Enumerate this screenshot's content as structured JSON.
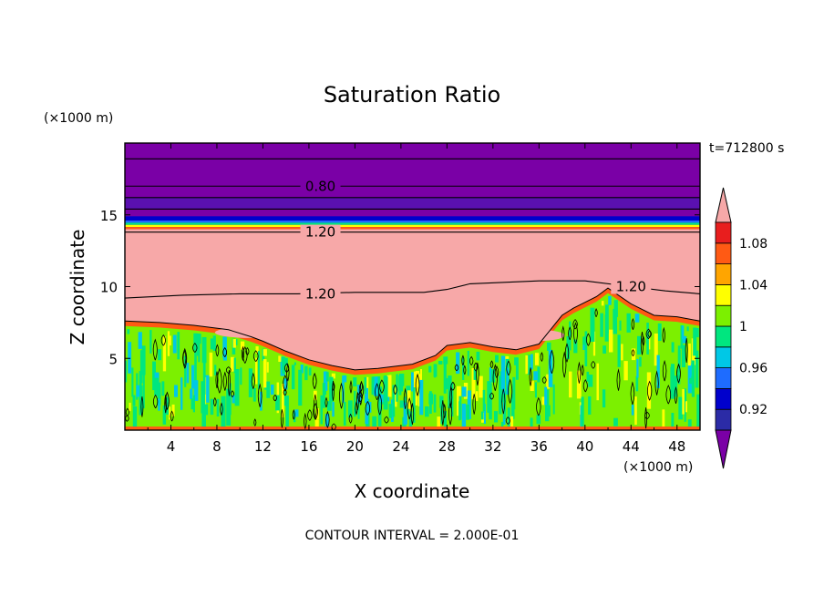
{
  "chart_data": {
    "type": "heatmap",
    "title": "Saturation Ratio",
    "xlabel": "X coordinate",
    "ylabel": "Z coordinate",
    "x_unit": "(×1000 m)",
    "y_unit": "(×1000 m)",
    "time_label": "t=712800 s",
    "footer": "CONTOUR INTERVAL = 2.000E-01",
    "xlim": [
      0,
      50
    ],
    "ylim": [
      0,
      20
    ],
    "x_ticks": [
      4,
      8,
      12,
      16,
      20,
      24,
      28,
      32,
      36,
      40,
      44,
      48
    ],
    "y_ticks": [
      5,
      10,
      15
    ],
    "colorbar": {
      "levels": [
        0.9,
        0.92,
        0.94,
        0.96,
        0.98,
        1.0,
        1.02,
        1.04,
        1.06,
        1.08,
        1.1
      ],
      "labels": [
        "0.92",
        "0.96",
        "1",
        "1.04",
        "1.08"
      ],
      "colors": [
        "#7a00a6",
        "#2b2ba6",
        "#0000cc",
        "#1e6cff",
        "#00c8e6",
        "#00e67f",
        "#7cf000",
        "#ffff00",
        "#ffa500",
        "#ff5a14",
        "#e81e1e",
        "#f7a8a8"
      ]
    },
    "contour_labels": [
      "0.80",
      "1.20",
      "1.20",
      "1.20"
    ],
    "regions": {
      "upper_layer": {
        "z_range": [
          14.5,
          20
        ],
        "value": "<0.90"
      },
      "moist_layer": {
        "z_range": [
          4,
          14.5
        ],
        "value": ">1.10"
      },
      "convective_layer": {
        "z_range": [
          0,
          7.5
        ],
        "value": "≈1.00"
      }
    }
  }
}
